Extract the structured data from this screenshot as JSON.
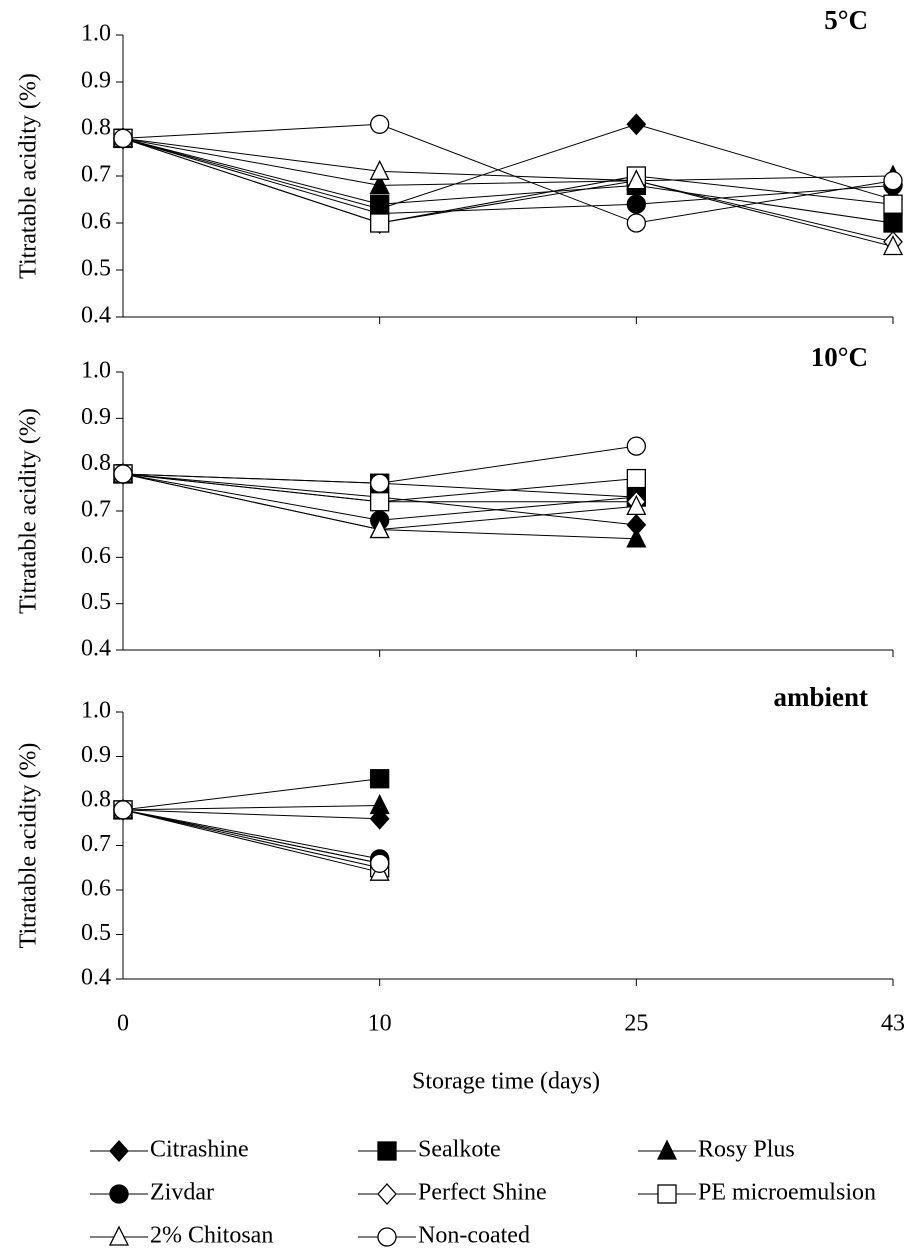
{
  "chart_data": [
    {
      "type": "line",
      "title": "5°C",
      "y_label": "Titratable acidity (%)",
      "ylim": [
        0.4,
        1.0
      ],
      "yticks": [
        0.4,
        0.5,
        0.6,
        0.7,
        0.8,
        0.9,
        {
          "value": 1.0,
          "label": "1.0"
        }
      ],
      "series": [
        {
          "name": "Citrashine",
          "color": "#000000",
          "marker": "diamond",
          "filled": true,
          "values": [
            0.78,
            0.63,
            0.81,
            0.65
          ]
        },
        {
          "name": "Sealkote",
          "color": "#000000",
          "marker": "square",
          "filled": true,
          "values": [
            0.78,
            0.64,
            0.68,
            0.6
          ]
        },
        {
          "name": "Rosy Plus",
          "color": "#000000",
          "marker": "triangle",
          "filled": true,
          "values": [
            0.78,
            0.68,
            0.69,
            0.7
          ]
        },
        {
          "name": "Zivdar",
          "color": "#000000",
          "marker": "circle",
          "filled": true,
          "values": [
            0.78,
            0.62,
            0.64,
            0.68
          ]
        },
        {
          "name": "Perfect Shine",
          "color": "#000000",
          "marker": "diamond",
          "filled": false,
          "values": [
            0.78,
            0.6,
            0.69,
            0.56
          ]
        },
        {
          "name": "PE microemulsion",
          "color": "#000000",
          "marker": "square",
          "filled": false,
          "values": [
            0.78,
            0.6,
            0.7,
            0.64
          ]
        },
        {
          "name": "2% Chitosan",
          "color": "#000000",
          "marker": "triangle",
          "filled": false,
          "values": [
            0.78,
            0.71,
            0.69,
            0.55
          ]
        },
        {
          "name": "Non-coated",
          "color": "#000000",
          "marker": "circle",
          "filled": false,
          "values": [
            0.78,
            0.81,
            0.6,
            0.69
          ]
        }
      ]
    },
    {
      "type": "line",
      "title": "10°C",
      "y_label": "Titratable acidity (%)",
      "ylim": [
        0.4,
        1.0
      ],
      "yticks": [
        0.4,
        0.5,
        0.6,
        0.7,
        0.8,
        0.9,
        {
          "value": 1.0,
          "label": "1.0"
        }
      ],
      "series": [
        {
          "values": [
            0.78,
            0.73,
            0.67,
            null
          ]
        },
        {
          "values": [
            0.78,
            0.76,
            0.73,
            null
          ]
        },
        {
          "values": [
            0.78,
            0.66,
            0.64,
            null
          ]
        },
        {
          "values": [
            0.78,
            0.68,
            0.73,
            null
          ]
        },
        {
          "values": [
            0.78,
            0.72,
            0.72,
            null
          ]
        },
        {
          "values": [
            0.78,
            0.72,
            0.77,
            null
          ]
        },
        {
          "values": [
            0.78,
            0.66,
            0.71,
            null
          ]
        },
        {
          "values": [
            0.78,
            0.76,
            0.84,
            null
          ]
        }
      ]
    },
    {
      "type": "line",
      "title": "ambient",
      "y_label": "Titratable acidity (%)",
      "x_label": "Storage time (days)",
      "categories": [
        "0",
        "10",
        "25",
        "43"
      ],
      "ylim": [
        0.4,
        1.0
      ],
      "yticks": [
        0.4,
        0.5,
        0.6,
        0.7,
        0.8,
        0.9,
        {
          "value": 1.0,
          "label": "1.0"
        }
      ],
      "series": [
        {
          "values": [
            0.78,
            0.76,
            null,
            null
          ]
        },
        {
          "values": [
            0.78,
            0.85,
            null,
            null
          ]
        },
        {
          "values": [
            0.78,
            0.79,
            null,
            null
          ]
        },
        {
          "values": [
            0.78,
            0.67,
            null,
            null
          ]
        },
        {
          "values": [
            0.78,
            0.66,
            null,
            null
          ]
        },
        {
          "values": [
            0.78,
            0.65,
            null,
            null
          ]
        },
        {
          "values": [
            0.78,
            0.64,
            null,
            null
          ]
        },
        {
          "values": [
            0.78,
            0.66,
            null,
            null
          ]
        }
      ]
    }
  ]
}
